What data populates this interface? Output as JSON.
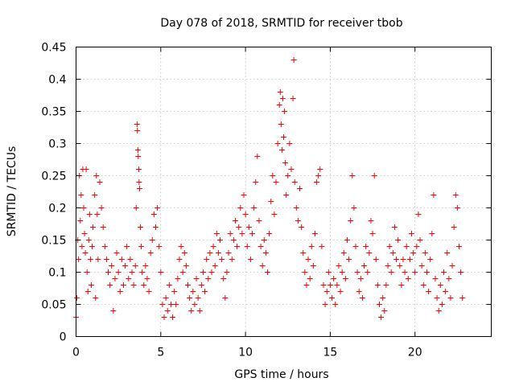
{
  "chart_data": {
    "type": "scatter",
    "title": "Day 078 of 2018, SRMTID for receiver tbob",
    "xlabel": "GPS time / hours",
    "ylabel": "SRMTID / TECUs",
    "xlim": [
      0,
      24.5
    ],
    "ylim": [
      0,
      0.45
    ],
    "xticks": [
      0,
      5,
      10,
      15,
      20
    ],
    "xtick_labels": [
      "0",
      "5",
      "10",
      "15",
      "20"
    ],
    "yticks": [
      0,
      0.05,
      0.1,
      0.15,
      0.2,
      0.25,
      0.3,
      0.35,
      0.4,
      0.45
    ],
    "ytick_labels": [
      "0",
      "0.05",
      "0.1",
      "0.15",
      "0.2",
      "0.25",
      "0.3",
      "0.35",
      "0.4",
      "0.45"
    ],
    "grid": true,
    "marker": "+",
    "marker_color": "#ff0000",
    "series": [
      {
        "name": "SRMTID",
        "points": [
          [
            0.0,
            0.03
          ],
          [
            0.05,
            0.06
          ],
          [
            0.1,
            0.15
          ],
          [
            0.15,
            0.12
          ],
          [
            0.2,
            0.25
          ],
          [
            0.25,
            0.18
          ],
          [
            0.3,
            0.22
          ],
          [
            0.35,
            0.14
          ],
          [
            0.4,
            0.26
          ],
          [
            0.45,
            0.2
          ],
          [
            0.5,
            0.16
          ],
          [
            0.55,
            0.13
          ],
          [
            0.6,
            0.26
          ],
          [
            0.65,
            0.1
          ],
          [
            0.7,
            0.07
          ],
          [
            0.75,
            0.15
          ],
          [
            0.8,
            0.19
          ],
          [
            0.85,
            0.12
          ],
          [
            0.9,
            0.08
          ],
          [
            0.95,
            0.14
          ],
          [
            1.0,
            0.17
          ],
          [
            1.1,
            0.22
          ],
          [
            1.15,
            0.06
          ],
          [
            1.2,
            0.25
          ],
          [
            1.25,
            0.19
          ],
          [
            1.3,
            0.12
          ],
          [
            1.4,
            0.24
          ],
          [
            1.5,
            0.2
          ],
          [
            1.6,
            0.17
          ],
          [
            1.7,
            0.14
          ],
          [
            1.8,
            0.12
          ],
          [
            1.9,
            0.1
          ],
          [
            2.0,
            0.08
          ],
          [
            2.1,
            0.11
          ],
          [
            2.2,
            0.04
          ],
          [
            2.3,
            0.09
          ],
          [
            2.4,
            0.13
          ],
          [
            2.5,
            0.1
          ],
          [
            2.6,
            0.07
          ],
          [
            2.7,
            0.12
          ],
          [
            2.8,
            0.08
          ],
          [
            2.9,
            0.11
          ],
          [
            3.0,
            0.14
          ],
          [
            3.1,
            0.09
          ],
          [
            3.2,
            0.12
          ],
          [
            3.3,
            0.1
          ],
          [
            3.4,
            0.08
          ],
          [
            3.5,
            0.11
          ],
          [
            3.55,
            0.2
          ],
          [
            3.6,
            0.33
          ],
          [
            3.62,
            0.32
          ],
          [
            3.65,
            0.29
          ],
          [
            3.67,
            0.28
          ],
          [
            3.7,
            0.26
          ],
          [
            3.72,
            0.24
          ],
          [
            3.75,
            0.23
          ],
          [
            3.8,
            0.17
          ],
          [
            3.85,
            0.14
          ],
          [
            3.9,
            0.1
          ],
          [
            4.0,
            0.08
          ],
          [
            4.1,
            0.11
          ],
          [
            4.2,
            0.09
          ],
          [
            4.3,
            0.07
          ],
          [
            4.4,
            0.13
          ],
          [
            4.5,
            0.15
          ],
          [
            4.6,
            0.19
          ],
          [
            4.7,
            0.17
          ],
          [
            4.8,
            0.2
          ],
          [
            4.9,
            0.14
          ],
          [
            5.0,
            0.1
          ],
          [
            5.1,
            0.05
          ],
          [
            5.2,
            0.03
          ],
          [
            5.3,
            0.06
          ],
          [
            5.4,
            0.04
          ],
          [
            5.5,
            0.08
          ],
          [
            5.6,
            0.05
          ],
          [
            5.7,
            0.03
          ],
          [
            5.8,
            0.07
          ],
          [
            5.9,
            0.05
          ],
          [
            6.0,
            0.09
          ],
          [
            6.1,
            0.12
          ],
          [
            6.2,
            0.14
          ],
          [
            6.3,
            0.1
          ],
          [
            6.4,
            0.13
          ],
          [
            6.5,
            0.11
          ],
          [
            6.6,
            0.08
          ],
          [
            6.7,
            0.06
          ],
          [
            6.8,
            0.04
          ],
          [
            6.9,
            0.07
          ],
          [
            7.0,
            0.05
          ],
          [
            7.1,
            0.09
          ],
          [
            7.2,
            0.06
          ],
          [
            7.3,
            0.04
          ],
          [
            7.4,
            0.08
          ],
          [
            7.5,
            0.1
          ],
          [
            7.6,
            0.07
          ],
          [
            7.7,
            0.12
          ],
          [
            7.8,
            0.09
          ],
          [
            7.9,
            0.13
          ],
          [
            8.0,
            0.1
          ],
          [
            8.1,
            0.14
          ],
          [
            8.2,
            0.11
          ],
          [
            8.3,
            0.16
          ],
          [
            8.4,
            0.13
          ],
          [
            8.5,
            0.15
          ],
          [
            8.6,
            0.12
          ],
          [
            8.7,
            0.09
          ],
          [
            8.8,
            0.06
          ],
          [
            8.9,
            0.1
          ],
          [
            9.0,
            0.13
          ],
          [
            9.1,
            0.16
          ],
          [
            9.2,
            0.12
          ],
          [
            9.3,
            0.15
          ],
          [
            9.4,
            0.18
          ],
          [
            9.5,
            0.14
          ],
          [
            9.6,
            0.17
          ],
          [
            9.7,
            0.2
          ],
          [
            9.8,
            0.16
          ],
          [
            9.9,
            0.22
          ],
          [
            10.0,
            0.19
          ],
          [
            10.1,
            0.14
          ],
          [
            10.2,
            0.17
          ],
          [
            10.3,
            0.12
          ],
          [
            10.4,
            0.16
          ],
          [
            10.5,
            0.2
          ],
          [
            10.6,
            0.24
          ],
          [
            10.7,
            0.28
          ],
          [
            10.8,
            0.18
          ],
          [
            10.9,
            0.14
          ],
          [
            11.0,
            0.11
          ],
          [
            11.1,
            0.15
          ],
          [
            11.2,
            0.13
          ],
          [
            11.3,
            0.1
          ],
          [
            11.4,
            0.16
          ],
          [
            11.5,
            0.21
          ],
          [
            11.6,
            0.25
          ],
          [
            11.7,
            0.19
          ],
          [
            11.8,
            0.24
          ],
          [
            11.9,
            0.3
          ],
          [
            12.0,
            0.36
          ],
          [
            12.05,
            0.38
          ],
          [
            12.1,
            0.33
          ],
          [
            12.15,
            0.29
          ],
          [
            12.2,
            0.37
          ],
          [
            12.25,
            0.31
          ],
          [
            12.3,
            0.35
          ],
          [
            12.35,
            0.27
          ],
          [
            12.4,
            0.22
          ],
          [
            12.5,
            0.25
          ],
          [
            12.6,
            0.3
          ],
          [
            12.7,
            0.26
          ],
          [
            12.8,
            0.37
          ],
          [
            12.85,
            0.43
          ],
          [
            12.9,
            0.24
          ],
          [
            13.0,
            0.2
          ],
          [
            13.1,
            0.18
          ],
          [
            13.2,
            0.23
          ],
          [
            13.3,
            0.17
          ],
          [
            13.4,
            0.13
          ],
          [
            13.5,
            0.1
          ],
          [
            13.6,
            0.08
          ],
          [
            13.7,
            0.12
          ],
          [
            13.8,
            0.09
          ],
          [
            13.9,
            0.14
          ],
          [
            14.0,
            0.11
          ],
          [
            14.1,
            0.16
          ],
          [
            14.2,
            0.24
          ],
          [
            14.3,
            0.25
          ],
          [
            14.4,
            0.26
          ],
          [
            14.5,
            0.14
          ],
          [
            14.6,
            0.08
          ],
          [
            14.7,
            0.05
          ],
          [
            14.8,
            0.07
          ],
          [
            14.9,
            0.1
          ],
          [
            15.0,
            0.08
          ],
          [
            15.1,
            0.06
          ],
          [
            15.2,
            0.09
          ],
          [
            15.3,
            0.05
          ],
          [
            15.4,
            0.08
          ],
          [
            15.5,
            0.11
          ],
          [
            15.6,
            0.07
          ],
          [
            15.7,
            0.1
          ],
          [
            15.8,
            0.13
          ],
          [
            15.9,
            0.09
          ],
          [
            16.0,
            0.15
          ],
          [
            16.1,
            0.12
          ],
          [
            16.2,
            0.18
          ],
          [
            16.3,
            0.25
          ],
          [
            16.4,
            0.2
          ],
          [
            16.5,
            0.14
          ],
          [
            16.6,
            0.1
          ],
          [
            16.7,
            0.07
          ],
          [
            16.8,
            0.09
          ],
          [
            16.9,
            0.06
          ],
          [
            17.0,
            0.11
          ],
          [
            17.1,
            0.14
          ],
          [
            17.2,
            0.1
          ],
          [
            17.3,
            0.13
          ],
          [
            17.4,
            0.18
          ],
          [
            17.5,
            0.16
          ],
          [
            17.6,
            0.25
          ],
          [
            17.7,
            0.12
          ],
          [
            17.8,
            0.08
          ],
          [
            17.9,
            0.05
          ],
          [
            18.0,
            0.03
          ],
          [
            18.1,
            0.06
          ],
          [
            18.2,
            0.04
          ],
          [
            18.3,
            0.08
          ],
          [
            18.4,
            0.11
          ],
          [
            18.5,
            0.14
          ],
          [
            18.6,
            0.1
          ],
          [
            18.7,
            0.13
          ],
          [
            18.8,
            0.17
          ],
          [
            18.9,
            0.12
          ],
          [
            19.0,
            0.15
          ],
          [
            19.1,
            0.11
          ],
          [
            19.2,
            0.08
          ],
          [
            19.3,
            0.12
          ],
          [
            19.4,
            0.1
          ],
          [
            19.5,
            0.14
          ],
          [
            19.6,
            0.09
          ],
          [
            19.7,
            0.12
          ],
          [
            19.8,
            0.16
          ],
          [
            19.9,
            0.13
          ],
          [
            20.0,
            0.1
          ],
          [
            20.1,
            0.14
          ],
          [
            20.2,
            0.19
          ],
          [
            20.3,
            0.15
          ],
          [
            20.4,
            0.11
          ],
          [
            20.5,
            0.08
          ],
          [
            20.6,
            0.13
          ],
          [
            20.7,
            0.1
          ],
          [
            20.8,
            0.07
          ],
          [
            20.9,
            0.12
          ],
          [
            21.0,
            0.16
          ],
          [
            21.1,
            0.22
          ],
          [
            21.2,
            0.09
          ],
          [
            21.3,
            0.06
          ],
          [
            21.4,
            0.04
          ],
          [
            21.5,
            0.08
          ],
          [
            21.6,
            0.05
          ],
          [
            21.7,
            0.1
          ],
          [
            21.8,
            0.07
          ],
          [
            21.9,
            0.13
          ],
          [
            22.0,
            0.09
          ],
          [
            22.1,
            0.06
          ],
          [
            22.2,
            0.11
          ],
          [
            22.3,
            0.17
          ],
          [
            22.4,
            0.22
          ],
          [
            22.5,
            0.2
          ],
          [
            22.6,
            0.14
          ],
          [
            22.7,
            0.1
          ],
          [
            22.8,
            0.06
          ]
        ]
      }
    ]
  }
}
